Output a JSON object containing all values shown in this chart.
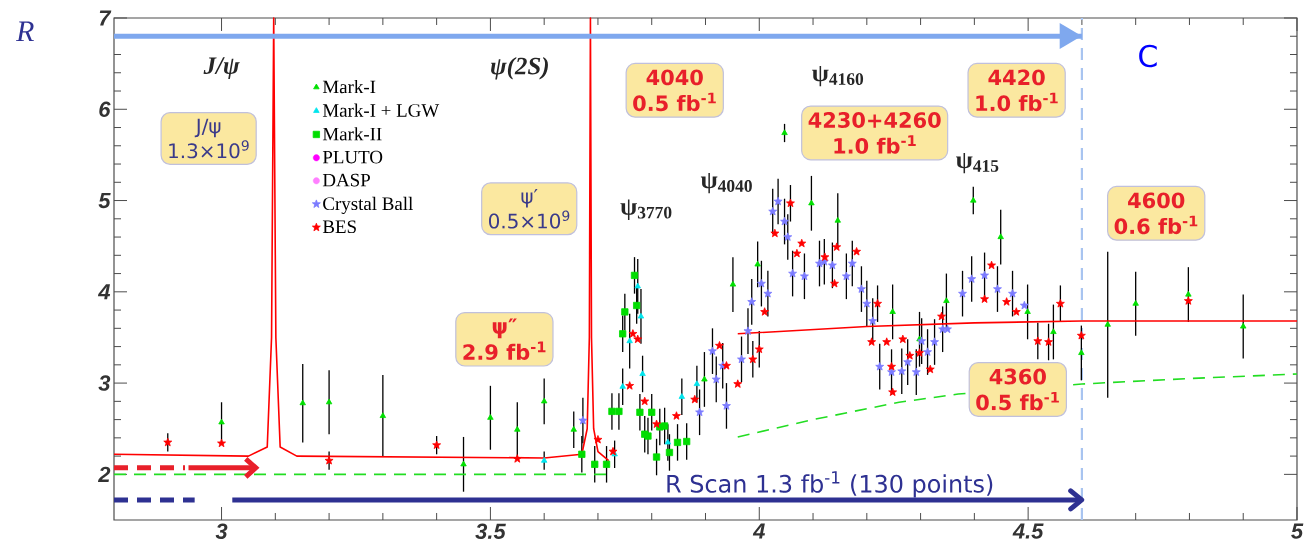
{
  "chart_data": {
    "type": "scatter",
    "ylabel": "R",
    "xlim": [
      2.8,
      5.0
    ],
    "ylim": [
      1.5,
      7.0
    ],
    "xticks": [
      3,
      3.5,
      4,
      4.5,
      5
    ],
    "yticks": [
      2,
      3,
      4,
      5,
      6,
      7
    ],
    "legend": "top left",
    "series": [
      {
        "name": "Mark-I",
        "color": "#00e000",
        "marker": "triangle",
        "x": [
          3.0,
          3.151,
          3.2,
          3.3,
          3.45,
          3.5,
          3.55,
          3.6,
          3.655,
          3.898,
          3.951,
          3.997,
          4.047,
          4.097,
          4.146,
          4.248,
          4.298,
          4.348,
          4.398,
          4.449,
          4.499,
          4.547,
          4.599,
          4.648,
          4.7,
          4.798,
          4.9
        ],
        "values": [
          2.57,
          2.78,
          2.79,
          2.64,
          2.11,
          2.62,
          2.49,
          2.8,
          2.49,
          3.04,
          4.08,
          4.3,
          5.74,
          4.97,
          4.78,
          3.78,
          3.48,
          3.9,
          5.0,
          4.6,
          3.78,
          3.56,
          3.33,
          3.64,
          3.87,
          3.97,
          3.62
        ],
        "errors": [
          0.22,
          0.43,
          0.35,
          0.45,
          0.3,
          0.35,
          0.3,
          0.25,
          0.2,
          0.3,
          0.3,
          0.25,
          0.1,
          0.3,
          0.3,
          0.3,
          0.3,
          0.3,
          0.15,
          0.3,
          0.3,
          0.3,
          0.3,
          0.8,
          0.35,
          0.3,
          0.35
        ]
      },
      {
        "name": "Mark-I + LGW",
        "color": "#00e5ee",
        "marker": "triangle",
        "x": [
          3.6,
          3.731,
          3.746,
          3.759,
          3.774,
          3.78,
          3.783,
          3.83,
          3.856,
          3.884
        ],
        "values": [
          2.15,
          2.22,
          2.96,
          3.46,
          4.06,
          3.73,
          3.1,
          2.35,
          2.85,
          2.99
        ],
        "errors": [
          0.1,
          0.15,
          0.2,
          0.3,
          0.3,
          0.3,
          0.2,
          0.2,
          0.2,
          0.2
        ]
      },
      {
        "name": "Mark-II",
        "color": "#00dd00",
        "marker": "square",
        "x": [
          3.67,
          3.694,
          3.716,
          3.726,
          3.739,
          3.746,
          3.75,
          3.768,
          3.772,
          3.778,
          3.787,
          3.793,
          3.8,
          3.809,
          3.815,
          3.824,
          3.833,
          3.848,
          3.865
        ],
        "values": [
          2.22,
          2.11,
          2.11,
          2.69,
          2.69,
          3.54,
          3.78,
          4.18,
          3.85,
          2.68,
          2.44,
          2.42,
          2.68,
          2.19,
          2.52,
          2.53,
          2.24,
          2.35,
          2.36
        ],
        "errors": [
          0.2,
          0.2,
          0.2,
          0.2,
          0.2,
          0.2,
          0.2,
          0.2,
          0.2,
          0.2,
          0.2,
          0.2,
          0.2,
          0.2,
          0.2,
          0.2,
          0.2,
          0.2,
          0.2
        ]
      },
      {
        "name": "PLUTO",
        "color": "#ff00ff",
        "marker": "circle"
      },
      {
        "name": "DASP",
        "color": "#ff80ff",
        "marker": "circle"
      },
      {
        "name": "Crystal Ball",
        "color": "#7b7bff",
        "marker": "star",
        "x": [
          3.672,
          3.889,
          3.913,
          3.92,
          3.932,
          3.939,
          3.967,
          3.979,
          3.986,
          4.004,
          4.016,
          4.025,
          4.035,
          4.047,
          4.053,
          4.062,
          4.084,
          4.112,
          4.121,
          4.136,
          4.162,
          4.173,
          4.19,
          4.2,
          4.211,
          4.224,
          4.246,
          4.265,
          4.276,
          4.292,
          4.302,
          4.313,
          4.326,
          4.341,
          4.35,
          4.378,
          4.395,
          4.419,
          4.443,
          4.471,
          4.493
        ],
        "values": [
          2.59,
          2.68,
          3.35,
          3.04,
          3.19,
          2.75,
          3.26,
          3.57,
          3.89,
          4.09,
          3.98,
          4.88,
          4.99,
          4.77,
          4.6,
          4.2,
          4.17,
          4.31,
          4.33,
          4.29,
          4.17,
          4.31,
          4.03,
          3.87,
          3.68,
          3.18,
          3.12,
          3.13,
          3.23,
          3.12,
          3.46,
          3.34,
          3.45,
          3.59,
          3.59,
          3.98,
          4.14,
          4.18,
          4.03,
          3.98,
          3.85
        ],
        "errors": [
          0.25,
          0.25,
          0.25,
          0.25,
          0.25,
          0.25,
          0.25,
          0.25,
          0.25,
          0.25,
          0.25,
          0.25,
          0.25,
          0.25,
          0.25,
          0.25,
          0.25,
          0.25,
          0.25,
          0.25,
          0.25,
          0.25,
          0.25,
          0.25,
          0.25,
          0.25,
          0.25,
          0.25,
          0.25,
          0.25,
          0.25,
          0.25,
          0.25,
          0.25,
          null,
          0.25,
          0.25,
          0.25,
          0.25,
          0.25,
          null
        ]
      },
      {
        "name": "BES",
        "color": "#ff0000",
        "marker": "star",
        "x": [
          2.9,
          3.0,
          3.2,
          3.4,
          3.55,
          3.7,
          3.728,
          3.759,
          3.765,
          3.774,
          3.787,
          3.809,
          3.846,
          3.88,
          3.926,
          3.939,
          3.96,
          3.988,
          4.0,
          4.01,
          4.029,
          4.058,
          4.07,
          4.079,
          4.122,
          4.14,
          4.144,
          4.181,
          4.209,
          4.22,
          4.237,
          4.246,
          4.248,
          4.267,
          4.28,
          4.298,
          4.318,
          4.339,
          4.419,
          4.432,
          4.46,
          4.478,
          4.518,
          4.538,
          4.56,
          4.599,
          4.798
        ],
        "values": [
          2.35,
          2.34,
          2.15,
          2.32,
          2.17,
          2.38,
          2.25,
          2.97,
          3.54,
          3.48,
          2.8,
          2.55,
          2.64,
          2.82,
          3.41,
          3.19,
          2.99,
          3.26,
          3.37,
          3.78,
          4.64,
          4.97,
          4.42,
          4.53,
          4.38,
          4.09,
          4.49,
          4.44,
          3.45,
          3.87,
          3.45,
          3.18,
          2.9,
          3.48,
          3.3,
          3.33,
          3.15,
          3.73,
          3.92,
          4.29,
          3.89,
          3.78,
          3.46,
          3.45,
          3.87,
          3.52,
          3.9
        ],
        "errors": [
          0.1,
          null,
          0.1,
          0.1,
          null,
          null,
          null,
          null,
          null,
          null,
          null,
          null,
          null,
          null,
          null,
          null,
          null,
          0.2,
          0.2,
          null,
          null,
          0.2,
          null,
          null,
          null,
          null,
          null,
          null,
          null,
          0.2,
          null,
          null,
          null,
          null,
          null,
          null,
          null,
          null,
          null,
          null,
          null,
          null,
          0.2,
          0.2,
          0.2,
          null,
          null
        ]
      },
      {
        "type": "line",
        "color": "#ff0000",
        "line_style": "solid",
        "x": [
          2.8,
          3.05,
          3.085,
          3.093,
          3.097,
          3.101,
          3.109,
          3.14,
          3.6,
          3.67,
          3.68,
          3.684,
          3.686,
          3.688,
          3.692,
          3.7,
          3.72,
          3.84,
          3.96,
          4.2,
          4.4,
          4.6,
          5.0
        ],
        "values": [
          2.22,
          2.2,
          2.3,
          3.5,
          7.0,
          3.5,
          2.3,
          2.2,
          2.18,
          2.22,
          2.5,
          3.5,
          7.0,
          3.5,
          2.5,
          2.25,
          2.15,
          null,
          3.54,
          3.62,
          3.66,
          3.68,
          3.68
        ]
      },
      {
        "type": "line",
        "color": "#22dd22",
        "line_style": "dashed",
        "x": [
          2.8,
          3.72,
          3.84,
          3.96,
          4.1,
          4.26,
          4.37,
          4.6,
          4.8,
          5.0
        ],
        "values": [
          2.0,
          2.0,
          null,
          2.41,
          2.6,
          2.79,
          2.88,
          2.99,
          3.05,
          3.1
        ]
      },
      {
        "type": "line",
        "color": "#7fa8ee",
        "line_style": "solid",
        "x": [
          2.8,
          4.6
        ],
        "values": [
          6.8,
          6.8
        ]
      },
      {
        "type": "line",
        "color": "#2e3192",
        "line_style": "dashed",
        "x": [
          2.8,
          2.95
        ],
        "values": [
          1.72,
          1.72
        ]
      },
      {
        "type": "line",
        "color": "#2e3192",
        "line_style": "solid",
        "x": [
          3.02,
          4.6
        ],
        "values": [
          1.72,
          1.72
        ]
      }
    ],
    "ref_lines": [
      {
        "axis": "x",
        "value": 4.6,
        "label": "C",
        "color": "#a8c4f0",
        "line_style": "dashed"
      }
    ],
    "annotations": [
      "*J/ψ*",
      "*ψ(2S)*",
      "ψ$_{3770}$",
      "ψ$_{4040}$",
      "ψ$_{4160}$",
      "ψ$_{415}$",
      "J/ψ",
      "1.3×10$^{9}$",
      "ψ′",
      "0.5×10$^{9}$",
      "ψ″",
      "2.9 fb$^{-1}$",
      "4040",
      "0.5 fb$^{-1}$",
      "4230+4260",
      "1.0 fb$^{-1}$",
      "4420",
      "1.0 fb$^{-1}$",
      "4360",
      "0.5 fb$^{-1}$",
      "4600",
      "0.6 fb$^{-1}$",
      "R Scan 1.3 fb$^{-1}$ (130 points)"
    ]
  }
}
